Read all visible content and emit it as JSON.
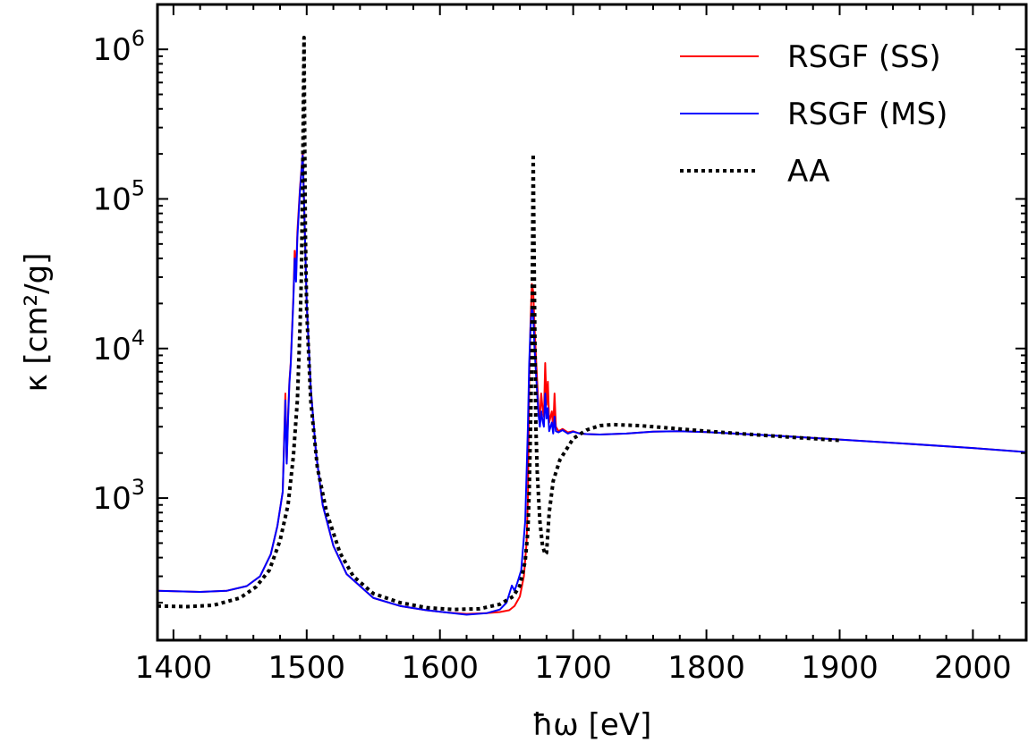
{
  "chart_data": {
    "type": "line",
    "xlabel": "ħω [eV]",
    "ylabel": "κ [cm²/g]",
    "xlim": [
      1388,
      2040
    ],
    "ylim_log10": [
      2.05,
      6.3
    ],
    "yscale": "log",
    "x_ticks": [
      1400,
      1500,
      1600,
      1700,
      1800,
      1900,
      2000
    ],
    "x_tick_labels": [
      "1400",
      "1500",
      "1600",
      "1700",
      "1800",
      "1900",
      "2000"
    ],
    "y_ticks_log10": [
      3,
      4,
      5,
      6
    ],
    "y_tick_labels": [
      {
        "base": "10",
        "exp": "3"
      },
      {
        "base": "10",
        "exp": "4"
      },
      {
        "base": "10",
        "exp": "5"
      },
      {
        "base": "10",
        "exp": "6"
      }
    ],
    "legend_position": "top-right",
    "series": [
      {
        "name": "RSGF (SS)",
        "color": "#ff0000",
        "style": "solid",
        "points": [
          [
            1388,
            240
          ],
          [
            1420,
            236
          ],
          [
            1440,
            240
          ],
          [
            1455,
            258
          ],
          [
            1465,
            300
          ],
          [
            1473,
            420
          ],
          [
            1478,
            650
          ],
          [
            1482,
            1100
          ],
          [
            1484,
            5000
          ],
          [
            1485,
            1700
          ],
          [
            1486,
            3500
          ],
          [
            1487,
            6000
          ],
          [
            1488,
            8000
          ],
          [
            1490,
            22000
          ],
          [
            1491,
            45000
          ],
          [
            1492,
            30000
          ],
          [
            1493,
            60000
          ],
          [
            1495,
            120000
          ],
          [
            1497,
            200000
          ],
          [
            1498,
            100000
          ],
          [
            1500,
            20000
          ],
          [
            1503,
            5500
          ],
          [
            1507,
            2000
          ],
          [
            1512,
            900
          ],
          [
            1520,
            480
          ],
          [
            1530,
            310
          ],
          [
            1550,
            215
          ],
          [
            1570,
            190
          ],
          [
            1590,
            178
          ],
          [
            1605,
            172
          ],
          [
            1620,
            168
          ],
          [
            1635,
            170
          ],
          [
            1645,
            173
          ],
          [
            1652,
            178
          ],
          [
            1656,
            190
          ],
          [
            1660,
            220
          ],
          [
            1663,
            300
          ],
          [
            1665,
            500
          ],
          [
            1666,
            1000
          ],
          [
            1667,
            6000
          ],
          [
            1668,
            15000
          ],
          [
            1669,
            27000
          ],
          [
            1670,
            24000
          ],
          [
            1671,
            14000
          ],
          [
            1672,
            9000
          ],
          [
            1673,
            6000
          ],
          [
            1674,
            4000
          ],
          [
            1675,
            3500
          ],
          [
            1676,
            5000
          ],
          [
            1677,
            4000
          ],
          [
            1678,
            3500
          ],
          [
            1679,
            8000
          ],
          [
            1680,
            4200
          ],
          [
            1681,
            6000
          ],
          [
            1682,
            3200
          ],
          [
            1684,
            3800
          ],
          [
            1685,
            2900
          ],
          [
            1686,
            5000
          ],
          [
            1687,
            3000
          ],
          [
            1689,
            2800
          ],
          [
            1692,
            2900
          ],
          [
            1696,
            2750
          ],
          [
            1700,
            2800
          ],
          [
            1705,
            2700
          ],
          [
            1710,
            2680
          ],
          [
            1720,
            2660
          ],
          [
            1740,
            2700
          ],
          [
            1760,
            2780
          ],
          [
            1780,
            2800
          ],
          [
            1800,
            2760
          ],
          [
            1850,
            2620
          ],
          [
            1900,
            2460
          ],
          [
            1950,
            2310
          ],
          [
            2000,
            2160
          ],
          [
            2040,
            2030
          ]
        ]
      },
      {
        "name": "RSGF (MS)",
        "color": "#0000ff",
        "style": "solid",
        "points": [
          [
            1388,
            240
          ],
          [
            1420,
            236
          ],
          [
            1440,
            240
          ],
          [
            1455,
            258
          ],
          [
            1465,
            300
          ],
          [
            1473,
            420
          ],
          [
            1478,
            650
          ],
          [
            1482,
            1100
          ],
          [
            1484,
            4500
          ],
          [
            1485,
            1700
          ],
          [
            1486,
            3300
          ],
          [
            1487,
            5800
          ],
          [
            1488,
            7800
          ],
          [
            1490,
            21000
          ],
          [
            1491,
            40000
          ],
          [
            1492,
            28000
          ],
          [
            1493,
            55000
          ],
          [
            1495,
            115000
          ],
          [
            1497,
            195000
          ],
          [
            1498,
            95000
          ],
          [
            1500,
            20000
          ],
          [
            1503,
            5500
          ],
          [
            1507,
            2000
          ],
          [
            1512,
            900
          ],
          [
            1520,
            480
          ],
          [
            1530,
            310
          ],
          [
            1550,
            215
          ],
          [
            1570,
            190
          ],
          [
            1590,
            178
          ],
          [
            1605,
            172
          ],
          [
            1620,
            166
          ],
          [
            1635,
            170
          ],
          [
            1645,
            180
          ],
          [
            1650,
            200
          ],
          [
            1654,
            260
          ],
          [
            1656,
            240
          ],
          [
            1658,
            270
          ],
          [
            1661,
            330
          ],
          [
            1664,
            700
          ],
          [
            1666,
            3000
          ],
          [
            1667,
            8000
          ],
          [
            1668,
            14000
          ],
          [
            1669,
            19000
          ],
          [
            1670,
            17000
          ],
          [
            1671,
            10000
          ],
          [
            1672,
            7000
          ],
          [
            1673,
            5000
          ],
          [
            1674,
            3600
          ],
          [
            1675,
            3000
          ],
          [
            1676,
            3800
          ],
          [
            1677,
            3300
          ],
          [
            1678,
            3000
          ],
          [
            1679,
            5000
          ],
          [
            1680,
            3400
          ],
          [
            1681,
            4000
          ],
          [
            1682,
            2800
          ],
          [
            1684,
            3200
          ],
          [
            1685,
            2700
          ],
          [
            1686,
            3500
          ],
          [
            1687,
            2800
          ],
          [
            1689,
            2750
          ],
          [
            1692,
            2850
          ],
          [
            1696,
            2700
          ],
          [
            1700,
            2780
          ],
          [
            1705,
            2700
          ],
          [
            1710,
            2680
          ],
          [
            1720,
            2660
          ],
          [
            1740,
            2700
          ],
          [
            1760,
            2780
          ],
          [
            1780,
            2800
          ],
          [
            1800,
            2760
          ],
          [
            1850,
            2620
          ],
          [
            1900,
            2460
          ],
          [
            1950,
            2310
          ],
          [
            2000,
            2160
          ],
          [
            2040,
            2030
          ]
        ]
      },
      {
        "name": "AA",
        "color": "#000000",
        "style": "dotted",
        "points": [
          [
            1388,
            190
          ],
          [
            1410,
            188
          ],
          [
            1430,
            192
          ],
          [
            1450,
            215
          ],
          [
            1462,
            255
          ],
          [
            1472,
            330
          ],
          [
            1480,
            520
          ],
          [
            1486,
            900
          ],
          [
            1490,
            1900
          ],
          [
            1493,
            4500
          ],
          [
            1495,
            14000
          ],
          [
            1496,
            30000
          ],
          [
            1497,
            150000
          ],
          [
            1498,
            1200000
          ],
          [
            1499,
            60000
          ],
          [
            1500,
            18000
          ],
          [
            1503,
            4500
          ],
          [
            1508,
            1600
          ],
          [
            1515,
            800
          ],
          [
            1525,
            430
          ],
          [
            1535,
            300
          ],
          [
            1550,
            230
          ],
          [
            1570,
            200
          ],
          [
            1590,
            185
          ],
          [
            1610,
            180
          ],
          [
            1630,
            182
          ],
          [
            1645,
            195
          ],
          [
            1655,
            220
          ],
          [
            1660,
            260
          ],
          [
            1664,
            380
          ],
          [
            1666,
            600
          ],
          [
            1667,
            1100
          ],
          [
            1668,
            3000
          ],
          [
            1669,
            9000
          ],
          [
            1670,
            200000
          ],
          [
            1671,
            20000
          ],
          [
            1672,
            3000
          ],
          [
            1673,
            1500
          ],
          [
            1675,
            700
          ],
          [
            1677,
            480
          ],
          [
            1679,
            420
          ],
          [
            1680,
            430
          ],
          [
            1682,
            800
          ],
          [
            1685,
            1300
          ],
          [
            1690,
            1800
          ],
          [
            1700,
            2500
          ],
          [
            1710,
            2850
          ],
          [
            1720,
            3050
          ],
          [
            1730,
            3100
          ],
          [
            1750,
            3050
          ],
          [
            1770,
            2950
          ],
          [
            1800,
            2800
          ],
          [
            1850,
            2600
          ],
          [
            1900,
            2430
          ]
        ]
      }
    ]
  }
}
